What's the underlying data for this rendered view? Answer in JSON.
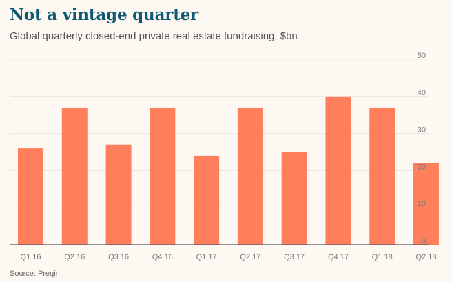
{
  "header": {
    "title": "Not a vintage quarter",
    "subtitle": "Global quarterly closed-end private real estate fundraising, $bn"
  },
  "footer": {
    "source": "Source: Preqin"
  },
  "chart_data": {
    "type": "bar",
    "categories": [
      "Q1 16",
      "Q2 16",
      "Q3 16",
      "Q4 16",
      "Q1 17",
      "Q2 17",
      "Q3 17",
      "Q4 17",
      "Q1 18",
      "Q2 18"
    ],
    "values": [
      26,
      37,
      27,
      37,
      24,
      37,
      25,
      40,
      37,
      22
    ],
    "title": "Not a vintage quarter",
    "subtitle": "Global quarterly closed-end private real estate fundraising, $bn",
    "xlabel": "",
    "ylabel": "",
    "ylim": [
      0,
      50
    ],
    "yticks": [
      0,
      10,
      20,
      30,
      40,
      50
    ],
    "y_axis_side": "right",
    "grid": true,
    "bar_color": "#ff7f5c",
    "grid_color": "#e9e3dc",
    "axis_color": "#555555"
  }
}
